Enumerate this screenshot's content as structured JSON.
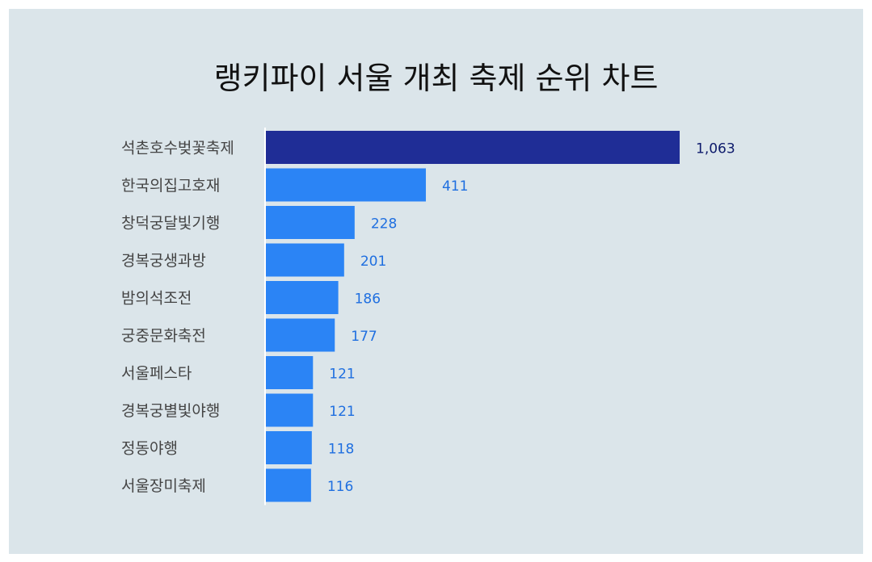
{
  "chart_data": {
    "type": "bar",
    "orientation": "horizontal",
    "title": "랭키파이 서울 개최 축제 순위 차트",
    "categories": [
      "석촌호수벚꽃축제",
      "한국의집고호재",
      "창덕궁달빛기행",
      "경복궁생과방",
      "밤의석조전",
      "궁중문화축전",
      "서울페스타",
      "경복궁별빛야행",
      "정동야행",
      "서울장미축제"
    ],
    "values": [
      1063,
      411,
      228,
      201,
      186,
      177,
      121,
      121,
      118,
      116
    ],
    "value_labels": [
      "1,063",
      "411",
      "228",
      "201",
      "186",
      "177",
      "121",
      "121",
      "118",
      "116"
    ],
    "xlim": [
      0,
      1063
    ],
    "grid": false,
    "legend": "none",
    "colors": {
      "background": "#dbe5ea",
      "top_bar": "#1f2d96",
      "bar": "#2b84f5",
      "top_label": "#0d1a6b",
      "label": "#1f6fe0",
      "category_text": "#444444"
    }
  }
}
